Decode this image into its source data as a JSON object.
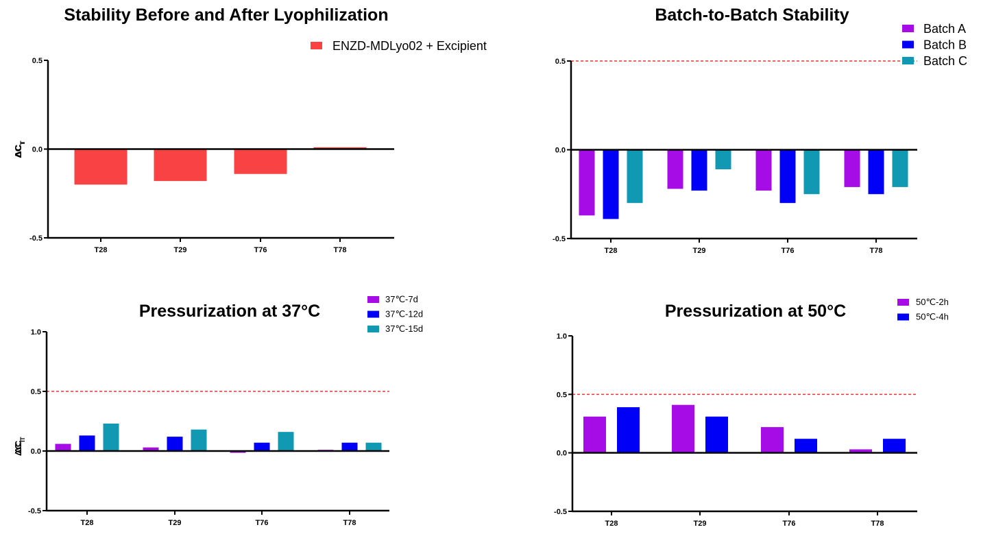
{
  "chart_data": [
    {
      "type": "bar",
      "title": "Stability Before and After Lyophilization",
      "xlabel": "",
      "ylabel": "ΔCT",
      "ylabel_main": "ΔC",
      "ylabel_sub": "T",
      "categories": [
        "T28",
        "T29",
        "T76",
        "T78"
      ],
      "series": [
        {
          "name": "ENZD-MDLyo02 + Excipient",
          "color": "#f84244",
          "values": [
            -0.2,
            -0.18,
            -0.14,
            0.01
          ]
        }
      ],
      "ylim": [
        -0.5,
        0.5
      ],
      "yticks": [
        "0.5",
        "0.0",
        "-0.5"
      ],
      "ytick_values": [
        0.5,
        0.0,
        -0.5
      ],
      "threshold": null,
      "legend": "top-right",
      "grid": false
    },
    {
      "type": "bar",
      "title": "Batch-to-Batch Stability",
      "xlabel": "",
      "ylabel": "ΔCT",
      "ylabel_main": "ΔC",
      "ylabel_sub": "T",
      "categories": [
        "T28",
        "T29",
        "T76",
        "T78"
      ],
      "series": [
        {
          "name": "Batch A",
          "color": "#a60ce6",
          "values": [
            -0.37,
            -0.22,
            -0.23,
            -0.21
          ]
        },
        {
          "name": "Batch B",
          "color": "#0000f7",
          "values": [
            -0.39,
            -0.23,
            -0.3,
            -0.25
          ]
        },
        {
          "name": "Batch C",
          "color": "#1198b3",
          "values": [
            -0.3,
            -0.11,
            -0.25,
            -0.21
          ]
        }
      ],
      "ylim": [
        -0.5,
        0.5
      ],
      "yticks": [
        "0.5",
        "0.0",
        "-0.5"
      ],
      "ytick_values": [
        0.5,
        0.0,
        -0.5
      ],
      "threshold": {
        "value": 0.5,
        "color": "#f03030",
        "style": "dashed"
      },
      "legend": "top-right",
      "grid": false
    },
    {
      "type": "bar",
      "title": "Pressurization at 37°C",
      "xlabel": "",
      "ylabel": "ΔCT",
      "ylabel_main": "ΔC",
      "ylabel_sub": "T",
      "categories": [
        "T28",
        "T29",
        "T76",
        "T78"
      ],
      "series": [
        {
          "name": "37℃-7d",
          "color": "#a60ce6",
          "values": [
            0.06,
            0.03,
            -0.015,
            0.01
          ]
        },
        {
          "name": "37℃-12d",
          "color": "#0000f7",
          "values": [
            0.13,
            0.12,
            0.07,
            0.07
          ]
        },
        {
          "name": "37℃-15d",
          "color": "#1198b3",
          "values": [
            0.23,
            0.18,
            0.16,
            0.07
          ]
        }
      ],
      "ylim": [
        -0.5,
        1.0
      ],
      "yticks": [
        "1.0",
        "0.5",
        "0.0",
        "-0.5"
      ],
      "ytick_values": [
        1.0,
        0.5,
        0.0,
        -0.5
      ],
      "threshold": {
        "value": 0.5,
        "color": "#f03030",
        "style": "dashed"
      },
      "legend": "top-right",
      "grid": false
    },
    {
      "type": "bar",
      "title": "Pressurization at 50°C",
      "xlabel": "",
      "ylabel": "ΔCT",
      "ylabel_main": "ΔC",
      "ylabel_sub": "T",
      "categories": [
        "T28",
        "T29",
        "T76",
        "T78"
      ],
      "series": [
        {
          "name": "50℃-2h",
          "color": "#a60ce6",
          "values": [
            0.31,
            0.41,
            0.22,
            0.03
          ]
        },
        {
          "name": "50℃-4h",
          "color": "#0000f7",
          "values": [
            0.39,
            0.31,
            0.12,
            0.12
          ]
        }
      ],
      "ylim": [
        -0.5,
        1.0
      ],
      "yticks": [
        "1.0",
        "0.5",
        "0.0",
        "-0.5"
      ],
      "ytick_values": [
        1.0,
        0.5,
        0.0,
        -0.5
      ],
      "threshold": {
        "value": 0.5,
        "color": "#f03030",
        "style": "dashed"
      },
      "legend": "top-right",
      "grid": false
    }
  ]
}
